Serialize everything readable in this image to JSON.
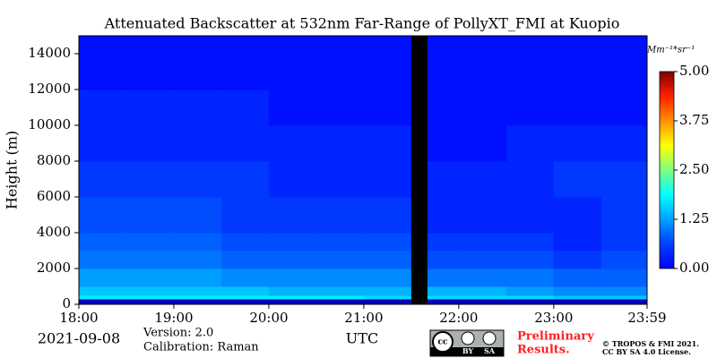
{
  "chart_data": {
    "type": "heatmap",
    "title": "Attenuated Backscatter at 532nm Far-Range of PollyXT_FMI at Kuopio",
    "ylabel": "Height (m)",
    "xlabel": "UTC",
    "date": "2021-09-08",
    "version": "Version: 2.0",
    "calibration": "Calibration: Raman",
    "preliminary": [
      "Preliminary",
      "Results."
    ],
    "copyright": [
      "© TROPOS & FMI 2021.",
      "CC BY SA 4.0 License."
    ],
    "cc_badge": [
      "BY",
      "SA"
    ],
    "colorbar_label": "Mm⁻¹*sr⁻¹",
    "xlim": [
      18,
      23.983
    ],
    "xticks": [
      {
        "value": 18,
        "label": "18:00"
      },
      {
        "value": 19,
        "label": "19:00"
      },
      {
        "value": 20,
        "label": "20:00"
      },
      {
        "value": 21,
        "label": "21:00"
      },
      {
        "value": 22,
        "label": "22:00"
      },
      {
        "value": 23,
        "label": "23:00"
      },
      {
        "value": 23.983,
        "label": "23:59"
      }
    ],
    "ylim": [
      0,
      15000
    ],
    "yticks": [
      0,
      2000,
      4000,
      6000,
      8000,
      10000,
      12000,
      14000
    ],
    "zlim": [
      0,
      5
    ],
    "zticks": [
      {
        "value": 0,
        "label": "0.00"
      },
      {
        "value": 1.25,
        "label": "1.25"
      },
      {
        "value": 2.5,
        "label": "2.50"
      },
      {
        "value": 3.75,
        "label": "3.75"
      },
      {
        "value": 5,
        "label": "5.00"
      }
    ],
    "colormap": "jet",
    "xbins": [
      18,
      18.5,
      19,
      19.5,
      20,
      20.5,
      21,
      21.5,
      21.67,
      22,
      22.5,
      23,
      23.5,
      23.983
    ],
    "ybins": [
      0,
      300,
      500,
      1000,
      2000,
      3000,
      4000,
      6000,
      8000,
      10000,
      12000,
      15000
    ],
    "z": [
      [
        0.3,
        0.3,
        0.3,
        0.3,
        0.3,
        0.3,
        0.3,
        null,
        0.3,
        0.3,
        0.3,
        0.3,
        0.3
      ],
      [
        1.8,
        1.8,
        1.8,
        1.8,
        1.8,
        1.8,
        1.7,
        null,
        1.7,
        1.7,
        1.7,
        1.6,
        1.6
      ],
      [
        1.6,
        1.6,
        1.6,
        1.6,
        1.5,
        1.5,
        1.5,
        null,
        1.5,
        1.5,
        1.4,
        1.3,
        1.3
      ],
      [
        1.4,
        1.4,
        1.4,
        1.3,
        1.3,
        1.3,
        1.3,
        null,
        1.2,
        1.2,
        1.2,
        1.1,
        1.1
      ],
      [
        1.2,
        1.2,
        1.2,
        1.1,
        1.1,
        1.1,
        1.1,
        null,
        1.0,
        1.0,
        1.0,
        0.9,
        1.0
      ],
      [
        1.1,
        1.1,
        1.1,
        1.0,
        1.0,
        1.0,
        1.0,
        null,
        0.9,
        0.9,
        0.9,
        0.8,
        0.9
      ],
      [
        1.0,
        1.0,
        1.0,
        0.9,
        0.9,
        0.9,
        0.9,
        null,
        0.8,
        0.8,
        0.8,
        0.8,
        0.9
      ],
      [
        0.9,
        0.9,
        0.9,
        0.9,
        0.8,
        0.8,
        0.8,
        null,
        0.8,
        0.8,
        0.8,
        0.9,
        0.9
      ],
      [
        0.8,
        0.8,
        0.8,
        0.8,
        0.8,
        0.8,
        0.8,
        null,
        0.7,
        0.7,
        0.8,
        0.8,
        0.8
      ],
      [
        0.8,
        0.8,
        0.8,
        0.8,
        0.7,
        0.7,
        0.7,
        null,
        0.7,
        0.7,
        0.7,
        0.7,
        0.7
      ],
      [
        0.7,
        0.7,
        0.7,
        0.7,
        0.7,
        0.7,
        0.7,
        null,
        0.7,
        0.7,
        0.7,
        0.7,
        0.7
      ]
    ]
  }
}
